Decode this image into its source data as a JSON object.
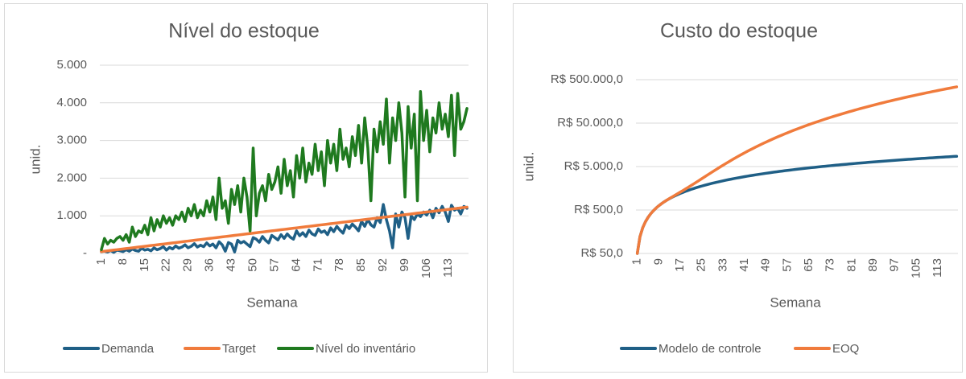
{
  "chart_data": [
    {
      "type": "line",
      "title": "Nível do estoque",
      "xlabel": "Semana",
      "ylabel": "unid.",
      "grid": true,
      "ylim": [
        0,
        5000
      ],
      "yticks": [
        {
          "value": 0,
          "label": "-"
        },
        {
          "value": 1000,
          "label": "1.000"
        },
        {
          "value": 2000,
          "label": "2.000"
        },
        {
          "value": 3000,
          "label": "3.000"
        },
        {
          "value": 4000,
          "label": "4.000"
        },
        {
          "value": 5000,
          "label": "5.000"
        }
      ],
      "categories": [
        "1",
        null,
        null,
        null,
        null,
        null,
        null,
        "8",
        null,
        null,
        null,
        null,
        null,
        null,
        "15",
        null,
        null,
        null,
        null,
        null,
        null,
        "22",
        null,
        null,
        null,
        null,
        null,
        null,
        "29",
        null,
        null,
        null,
        null,
        null,
        null,
        "36",
        null,
        null,
        null,
        null,
        null,
        null,
        "43",
        null,
        null,
        null,
        null,
        null,
        null,
        "50",
        null,
        null,
        null,
        null,
        null,
        null,
        "57",
        null,
        null,
        null,
        null,
        null,
        null,
        "64",
        null,
        null,
        null,
        null,
        null,
        null,
        "71",
        null,
        null,
        null,
        null,
        null,
        null,
        "78",
        null,
        null,
        null,
        null,
        null,
        null,
        "85",
        null,
        null,
        null,
        null,
        null,
        null,
        "92",
        null,
        null,
        null,
        null,
        null,
        null,
        "99",
        null,
        null,
        null,
        null,
        null,
        null,
        "106",
        null,
        null,
        null,
        null,
        null,
        null,
        "113",
        null,
        null,
        null,
        null,
        null,
        null
      ],
      "series": [
        {
          "name": "Demanda",
          "color": "#1f5f86",
          "values": [
            50,
            60,
            40,
            80,
            30,
            90,
            70,
            50,
            100,
            60,
            120,
            80,
            60,
            140,
            90,
            110,
            70,
            150,
            100,
            130,
            180,
            90,
            160,
            120,
            200,
            140,
            170,
            230,
            150,
            190,
            260,
            170,
            220,
            180,
            280,
            200,
            250,
            150,
            310,
            230,
            60,
            290,
            250,
            40,
            350,
            280,
            320,
            250,
            180,
            420,
            380,
            300,
            450,
            350,
            280,
            480,
            420,
            360,
            500,
            400,
            520,
            430,
            380,
            600,
            470,
            550,
            450,
            620,
            520,
            480,
            650,
            560,
            600,
            500,
            680,
            580,
            720,
            620,
            540,
            750,
            660,
            780,
            700,
            600,
            850,
            720,
            900,
            760,
            700,
            950,
            820,
            1300,
            900,
            600,
            150,
            1050,
            700,
            1100,
            950,
            400,
            1000,
            900,
            1050,
            980,
            1100,
            1020,
            1150,
            950,
            1200,
            1080,
            1250,
            1100,
            850,
            1280,
            1150,
            1200,
            1050,
            1250,
            1200
          ]
        },
        {
          "name": "Target",
          "color": "#f07b3c",
          "values": [
            50,
            60,
            70,
            80,
            90,
            100,
            110,
            120,
            130,
            140,
            150,
            160,
            170,
            180,
            190,
            200,
            210,
            220,
            230,
            240,
            250,
            260,
            270,
            280,
            290,
            300,
            310,
            320,
            330,
            340,
            350,
            360,
            370,
            380,
            390,
            400,
            410,
            420,
            430,
            440,
            450,
            460,
            470,
            480,
            490,
            500,
            510,
            520,
            530,
            540,
            550,
            560,
            570,
            580,
            590,
            600,
            610,
            620,
            630,
            640,
            650,
            660,
            670,
            680,
            690,
            700,
            710,
            720,
            730,
            740,
            750,
            760,
            770,
            780,
            790,
            800,
            810,
            820,
            830,
            840,
            850,
            860,
            870,
            880,
            890,
            900,
            910,
            920,
            930,
            940,
            950,
            960,
            970,
            980,
            990,
            1000,
            1010,
            1020,
            1030,
            1040,
            1050,
            1060,
            1070,
            1080,
            1090,
            1100,
            1110,
            1120,
            1130,
            1140,
            1150,
            1160,
            1170,
            1180,
            1190,
            1200,
            1210,
            1220,
            1230
          ]
        },
        {
          "name": "Nível do inventário",
          "color": "#1f7a1f",
          "values": [
            100,
            400,
            250,
            350,
            300,
            400,
            450,
            350,
            500,
            300,
            700,
            450,
            600,
            550,
            750,
            500,
            950,
            600,
            900,
            700,
            1000,
            800,
            950,
            750,
            1000,
            900,
            1100,
            850,
            1200,
            1000,
            1300,
            950,
            1150,
            1000,
            1400,
            1100,
            1500,
            900,
            2000,
            1200,
            1400,
            800,
            1700,
            1300,
            1800,
            1100,
            2000,
            1500,
            600,
            2800,
            1000,
            1600,
            1800,
            1400,
            2100,
            1700,
            1900,
            2300,
            1600,
            2500,
            1800,
            2200,
            1500,
            2600,
            2000,
            2800,
            1900,
            2400,
            2100,
            2900,
            2200,
            2700,
            1800,
            3000,
            2400,
            2900,
            2200,
            3300,
            2500,
            2800,
            2300,
            3100,
            2600,
            3400,
            2400,
            3600,
            2800,
            1400,
            3300,
            2700,
            3500,
            2900,
            4100,
            2400,
            3600,
            3000,
            4000,
            3200,
            1500,
            3900,
            2800,
            3700,
            1400,
            4300,
            3000,
            3800,
            2700,
            3600,
            3200,
            4000,
            3300,
            3700,
            3100,
            4200,
            2600,
            4250,
            3300,
            3500,
            3850
          ]
        }
      ]
    },
    {
      "type": "line",
      "title": "Custo do estoque",
      "xlabel": "Semana",
      "ylabel": "unid.",
      "grid": true,
      "yscale": "log",
      "ylim": [
        50,
        500000
      ],
      "yticks": [
        {
          "value": 50,
          "label": "R$ 50,0"
        },
        {
          "value": 500,
          "label": "R$ 500,0"
        },
        {
          "value": 5000,
          "label": "R$ 5.000,0"
        },
        {
          "value": 50000,
          "label": "R$ 50.000,0"
        },
        {
          "value": 500000,
          "label": "R$ 500.000,0"
        }
      ],
      "categories": [
        "1",
        null,
        null,
        null,
        null,
        null,
        null,
        null,
        "9",
        null,
        null,
        null,
        null,
        null,
        null,
        null,
        "17",
        null,
        null,
        null,
        null,
        null,
        null,
        null,
        "25",
        null,
        null,
        null,
        null,
        null,
        null,
        null,
        "33",
        null,
        null,
        null,
        null,
        null,
        null,
        null,
        "41",
        null,
        null,
        null,
        null,
        null,
        null,
        null,
        "49",
        null,
        null,
        null,
        null,
        null,
        null,
        null,
        "57",
        null,
        null,
        null,
        null,
        null,
        null,
        null,
        "65",
        null,
        null,
        null,
        null,
        null,
        null,
        null,
        "73",
        null,
        null,
        null,
        null,
        null,
        null,
        null,
        "81",
        null,
        null,
        null,
        null,
        null,
        null,
        null,
        "89",
        null,
        null,
        null,
        null,
        null,
        null,
        null,
        "97",
        null,
        null,
        null,
        null,
        null,
        null,
        null,
        "105",
        null,
        null,
        null,
        null,
        null,
        null,
        null,
        "113",
        null,
        null,
        null,
        null,
        null,
        null,
        null
      ],
      "series": [
        {
          "name": "Modelo de controle",
          "color": "#1f5f86",
          "values": [
            50,
            122,
            194,
            266,
            338,
            410,
            482,
            554,
            626,
            698,
            770,
            842,
            914,
            986,
            1058,
            1130,
            1202,
            1274,
            1346,
            1418,
            1490,
            1562,
            1634,
            1706,
            1778,
            1850,
            1922,
            1994,
            2066,
            2138,
            2210,
            2282,
            2354,
            2426,
            2498,
            2570,
            2642,
            2714,
            2786,
            2858,
            2930,
            3002,
            3074,
            3146,
            3218,
            3290,
            3362,
            3434,
            3506,
            3578,
            3650,
            3722,
            3794,
            3866,
            3938,
            4010,
            4082,
            4154,
            4226,
            4298,
            4370,
            4442,
            4514,
            4586,
            4658,
            4730,
            4802,
            4874,
            4946,
            5018,
            5090,
            5162,
            5234,
            5306,
            5378,
            5450,
            5522,
            5594,
            5666,
            5738,
            5810,
            5882,
            5954,
            6026,
            6098,
            6170,
            6242,
            6314,
            6386,
            6458,
            6530,
            6602,
            6674,
            6746,
            6818,
            6890,
            6962,
            7034,
            7106,
            7178,
            7250,
            7322,
            7394,
            7466,
            7538,
            7610,
            7682,
            7754,
            7826,
            7898,
            7970,
            8042,
            8114,
            8186,
            8258,
            8330,
            8402,
            8474,
            8546,
            8618
          ]
        },
        {
          "name": "EOQ",
          "color": "#f07b3c",
          "values": [
            50,
            122,
            194,
            266,
            338,
            410,
            482,
            554,
            626,
            698,
            770,
            844,
            921,
            1002,
            1089,
            1184,
            1288,
            1402,
            1528,
            1668,
            1823,
            1994,
            2183,
            2392,
            2622,
            2874,
            3150,
            3452,
            3781,
            4138,
            4525,
            4944,
            5396,
            5882,
            6404,
            6964,
            7563,
            8202,
            8883,
            9608,
            10378,
            11194,
            12058,
            12972,
            13937,
            14954,
            16025,
            17152,
            18336,
            19578,
            20880,
            22244,
            23671,
            25162,
            26719,
            28344,
            30038,
            31802,
            33638,
            35548,
            37533,
            39594,
            41733,
            43952,
            46252,
            48634,
            51100,
            53652,
            56291,
            59018,
            61835,
            64744,
            67746,
            70842,
            74034,
            77324,
            80713,
            84202,
            87793,
            91488,
            95288,
            99194,
            103208,
            107332,
            111567,
            115914,
            120375,
            124952,
            129646,
            134458,
            139390,
            144444,
            149621,
            154922,
            160349,
            165904,
            171588,
            177402,
            183348,
            189428,
            195643,
            201994,
            208483,
            215112,
            221882,
            228794,
            235851,
            243052,
            250401,
            257898,
            265545,
            273344,
            281296,
            289402,
            297664,
            306084,
            314663,
            323402,
            332303,
            341368
          ]
        }
      ]
    }
  ]
}
